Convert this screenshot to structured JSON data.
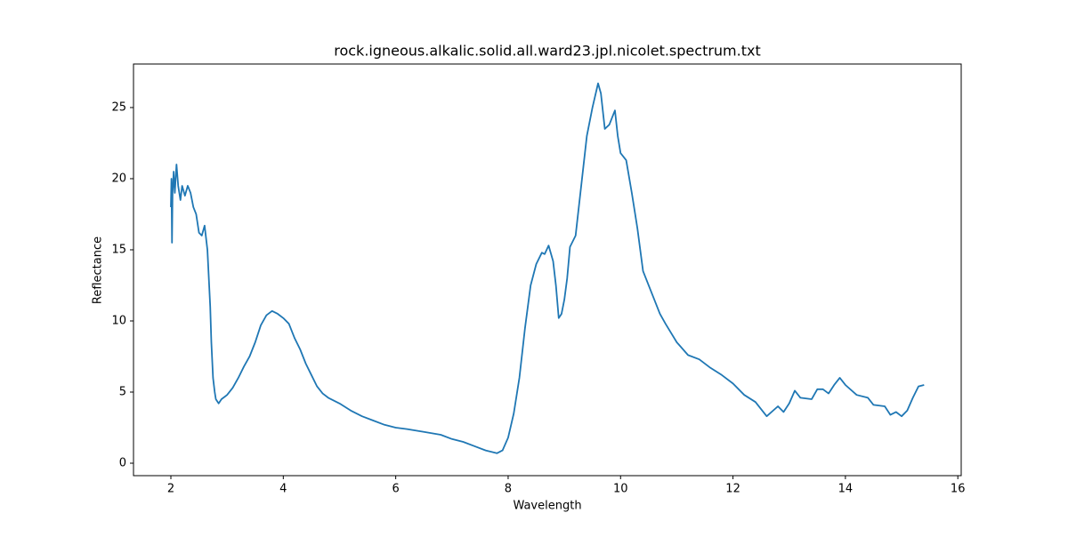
{
  "chart_data": {
    "type": "line",
    "title": "rock.igneous.alkalic.solid.all.ward23.jpl.nicolet.spectrum.txt",
    "x_label": "Wavelength",
    "y_label": "Reflectance",
    "xlim": [
      1.335,
      16.06
    ],
    "ylim": [
      -0.875,
      28.06
    ],
    "xticks": [
      2,
      4,
      6,
      8,
      10,
      12,
      14,
      16
    ],
    "yticks": [
      0,
      5,
      10,
      15,
      20,
      25
    ],
    "series": [
      {
        "color": "#1f77b4",
        "x": [
          2.0,
          2.01,
          2.02,
          2.03,
          2.05,
          2.07,
          2.1,
          2.13,
          2.17,
          2.2,
          2.25,
          2.3,
          2.35,
          2.4,
          2.45,
          2.5,
          2.55,
          2.6,
          2.65,
          2.7,
          2.72,
          2.75,
          2.78,
          2.8,
          2.85,
          2.9,
          3.0,
          3.1,
          3.2,
          3.3,
          3.4,
          3.5,
          3.6,
          3.7,
          3.8,
          3.9,
          4.0,
          4.1,
          4.2,
          4.3,
          4.4,
          4.5,
          4.6,
          4.7,
          4.8,
          5.0,
          5.2,
          5.4,
          5.6,
          5.8,
          6.0,
          6.2,
          6.5,
          6.8,
          7.0,
          7.2,
          7.4,
          7.6,
          7.8,
          7.9,
          8.0,
          8.1,
          8.2,
          8.3,
          8.4,
          8.5,
          8.6,
          8.65,
          8.72,
          8.8,
          8.85,
          8.9,
          8.95,
          9.0,
          9.05,
          9.1,
          9.2,
          9.3,
          9.4,
          9.5,
          9.6,
          9.65,
          9.72,
          9.8,
          9.9,
          9.95,
          10.0,
          10.1,
          10.2,
          10.3,
          10.4,
          10.5,
          10.6,
          10.7,
          10.8,
          11.0,
          11.2,
          11.4,
          11.6,
          11.8,
          12.0,
          12.2,
          12.4,
          12.6,
          12.8,
          12.9,
          13.0,
          13.1,
          13.2,
          13.4,
          13.5,
          13.6,
          13.7,
          13.8,
          13.9,
          14.0,
          14.2,
          14.4,
          14.5,
          14.7,
          14.8,
          14.9,
          15.0,
          15.1,
          15.2,
          15.3,
          15.4
        ],
        "values": [
          18,
          20,
          15.5,
          19,
          20.5,
          19,
          21,
          19.5,
          18.5,
          19.5,
          18.8,
          19.5,
          19,
          18,
          17.5,
          16.2,
          16,
          16.7,
          15,
          11,
          8.5,
          6,
          5,
          4.5,
          4.2,
          4.5,
          4.8,
          5.3,
          6,
          6.8,
          7.5,
          8.5,
          9.7,
          10.4,
          10.7,
          10.5,
          10.2,
          9.8,
          8.8,
          8,
          7,
          6.2,
          5.4,
          4.9,
          4.6,
          4.2,
          3.7,
          3.3,
          3,
          2.7,
          2.5,
          2.4,
          2.2,
          2,
          1.7,
          1.5,
          1.2,
          0.9,
          0.7,
          0.9,
          1.8,
          3.5,
          6,
          9.5,
          12.5,
          14,
          14.8,
          14.7,
          15.3,
          14.2,
          12.5,
          10.2,
          10.5,
          11.5,
          13,
          15.2,
          16,
          19.5,
          23,
          25,
          26.7,
          26,
          23.5,
          23.8,
          24.8,
          23,
          21.8,
          21.3,
          19,
          16.5,
          13.5,
          12.5,
          11.5,
          10.5,
          9.8,
          8.5,
          7.6,
          7.3,
          6.7,
          6.2,
          5.6,
          4.8,
          4.3,
          3.3,
          4,
          3.6,
          4.2,
          5.1,
          4.6,
          4.5,
          5.2,
          5.2,
          4.9,
          5.5,
          6,
          5.5,
          4.8,
          4.6,
          4.1,
          4,
          3.4,
          3.6,
          3.3,
          3.7,
          4.6,
          5.4,
          5.5
        ]
      }
    ]
  }
}
